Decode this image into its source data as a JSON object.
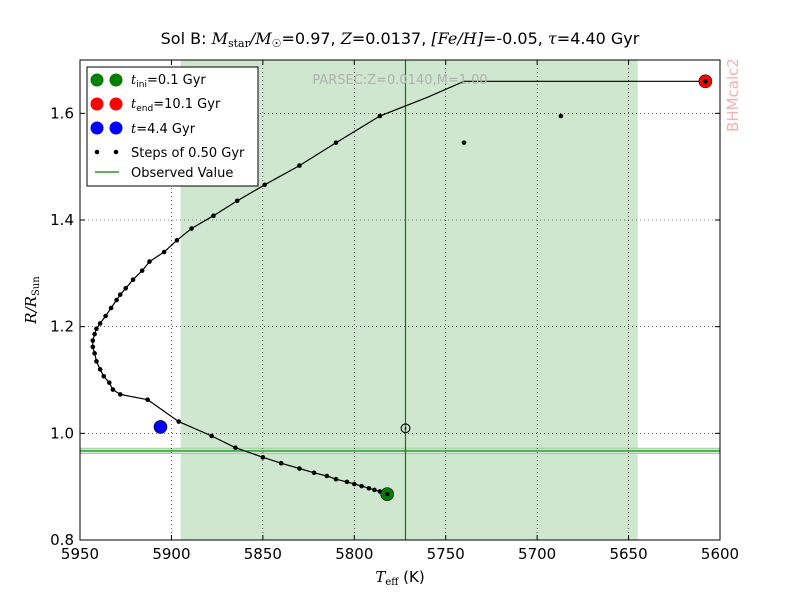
{
  "chart_data": {
    "type": "line",
    "title": "Sol B: M_star/M_☉=0.97, Z=0.0137, [Fe/H]=-0.05, τ=4.40 Gyr",
    "title_parts": {
      "prefix": "Sol B: ",
      "mass_symbol": "M",
      "mass_sub": "star",
      "mass_sep": "/",
      "sun_symbol": "M",
      "sun_sub": "☉",
      "mass_value": "=0.97, ",
      "z_symbol": "Z",
      "z_value": "=0.0137, ",
      "feh_symbol": "[Fe/H]",
      "feh_value": "=-0.05, ",
      "tau_symbol": "τ",
      "tau_value": "=4.40 Gyr"
    },
    "xlabel": {
      "symbol": "T",
      "sub": "eff",
      "unit": " (K)"
    },
    "ylabel": {
      "symbol": "R/R",
      "sub": "Sun"
    },
    "xlim": [
      5950,
      5600
    ],
    "ylim": [
      0.8,
      1.7
    ],
    "x_ticks": [
      "5950",
      "5900",
      "5850",
      "5800",
      "5750",
      "5700",
      "5650",
      "5600"
    ],
    "y_ticks": [
      "0.8",
      "1.0",
      "1.2",
      "1.4",
      "1.6"
    ],
    "grid": true,
    "legend_position": "top-left",
    "annotation": "PARSEC:Z=0.0140,M=1.00",
    "watermark": "BHMcalc2",
    "track": {
      "x": [
        5782,
        5783,
        5786,
        5789,
        5792,
        5796,
        5800,
        5804,
        5810,
        5815,
        5822,
        5830,
        5840,
        5850,
        5865,
        5878,
        5896,
        5913,
        5928,
        5932,
        5934,
        5937,
        5939,
        5941,
        5942,
        5943,
        5943,
        5942,
        5941,
        5939,
        5936,
        5933,
        5930,
        5928,
        5925,
        5921,
        5916,
        5912,
        5904,
        5897,
        5889,
        5877,
        5864,
        5849,
        5830,
        5810,
        5786,
        5760,
        5740,
        5687,
        5608
      ],
      "y": [
        0.886,
        0.888,
        0.891,
        0.894,
        0.897,
        0.901,
        0.905,
        0.909,
        0.914,
        0.92,
        0.926,
        0.934,
        0.944,
        0.955,
        0.973,
        0.995,
        1.022,
        1.063,
        1.073,
        1.082,
        1.095,
        1.107,
        1.12,
        1.135,
        1.15,
        1.162,
        1.174,
        1.186,
        1.196,
        1.206,
        1.22,
        1.235,
        1.25,
        1.26,
        1.272,
        1.288,
        1.305,
        1.322,
        1.34,
        1.362,
        1.384,
        1.408,
        1.436,
        1.466,
        1.502,
        1.545,
        1.595,
        1.63,
        1.66,
        1.66,
        1.66
      ]
    },
    "steps": {
      "x": [
        5782,
        5783,
        5786,
        5789,
        5792,
        5796,
        5800,
        5804,
        5810,
        5815,
        5822,
        5830,
        5840,
        5850,
        5865,
        5878,
        5896,
        5913,
        5928,
        5932,
        5934,
        5937,
        5939,
        5941,
        5942,
        5943,
        5943,
        5942,
        5941,
        5939,
        5936,
        5933,
        5930,
        5928,
        5925,
        5921,
        5916,
        5912,
        5904,
        5897,
        5889,
        5877,
        5864,
        5849,
        5830,
        5810,
        5786,
        5740,
        5687,
        5608
      ],
      "y": [
        0.886,
        0.888,
        0.891,
        0.894,
        0.897,
        0.901,
        0.905,
        0.909,
        0.914,
        0.92,
        0.926,
        0.934,
        0.944,
        0.955,
        0.973,
        0.995,
        1.022,
        1.063,
        1.073,
        1.082,
        1.095,
        1.107,
        1.12,
        1.135,
        1.15,
        1.162,
        1.174,
        1.186,
        1.196,
        1.206,
        1.22,
        1.235,
        1.25,
        1.26,
        1.272,
        1.288,
        1.305,
        1.322,
        1.34,
        1.362,
        1.384,
        1.408,
        1.436,
        1.466,
        1.502,
        1.545,
        1.595,
        1.545,
        1.595,
        1.66
      ]
    },
    "markers": [
      {
        "name": "t_ini",
        "x": 5782,
        "y": 0.886,
        "color": "#008000"
      },
      {
        "name": "t_end",
        "x": 5608,
        "y": 1.66,
        "color": "#ff0000"
      },
      {
        "name": "t",
        "x": 5906,
        "y": 1.012,
        "color": "#0000ff"
      }
    ],
    "observed": {
      "teff": 5772,
      "teff_band": [
        5895,
        5645
      ],
      "radius": 0.967,
      "radius_band": [
        0.962,
        0.972
      ],
      "color": "#008000",
      "band_color": "#cfe6cf"
    },
    "sun_symbol": {
      "x": 5772,
      "y": 1.01,
      "glyph": "⊙"
    },
    "legend": [
      {
        "symbol": "t",
        "sub": "ini",
        "value": "=0.1 Gyr",
        "color": "#008000",
        "kind": "big-dot"
      },
      {
        "symbol": "t",
        "sub": "end",
        "value": "=10.1 Gyr",
        "color": "#ff0000",
        "kind": "big-dot"
      },
      {
        "symbol": "t",
        "sub": "",
        "value": "=4.4 Gyr",
        "color": "#0000ff",
        "kind": "big-dot"
      },
      {
        "symbol": "",
        "sub": "",
        "value": "Steps of 0.50 Gyr",
        "color": "#000000",
        "kind": "small-dot"
      },
      {
        "symbol": "",
        "sub": "",
        "value": "Observed Value",
        "color": "#008000",
        "kind": "line"
      }
    ]
  }
}
